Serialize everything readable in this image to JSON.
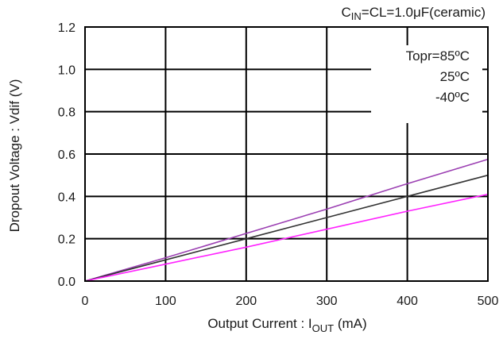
{
  "chart_data": {
    "type": "line",
    "title": "",
    "conditions": {
      "prefix": "C",
      "sub": "IN",
      "rest": "=CL=1.0μF(ceramic)"
    },
    "xlabel": {
      "main": "Output Current : I",
      "sub": "OUT",
      "unit": "(mA)"
    },
    "ylabel": "Dropout Voltage : Vdif (V)",
    "xlim": [
      0,
      500
    ],
    "ylim": [
      0,
      1.2
    ],
    "xticks": [
      "0",
      "100",
      "200",
      "300",
      "400",
      "500"
    ],
    "yticks": [
      "0.0",
      "0.2",
      "0.4",
      "0.6",
      "0.8",
      "1.0",
      "1.2"
    ],
    "grid": true,
    "legend_placement": "top-right",
    "legend_entries": [
      "Topr=85ºC",
      "25ºC",
      "-40ºC"
    ],
    "series": [
      {
        "name": "Topr=85ºC",
        "color": "#9b3fb2",
        "x": [
          0,
          100,
          200,
          300,
          400,
          500
        ],
        "y": [
          0.0,
          0.11,
          0.225,
          0.34,
          0.46,
          0.575
        ]
      },
      {
        "name": "25ºC",
        "color": "#333333",
        "x": [
          0,
          100,
          200,
          300,
          400,
          500
        ],
        "y": [
          0.0,
          0.1,
          0.2,
          0.3,
          0.4,
          0.5
        ]
      },
      {
        "name": "-40ºC",
        "color": "#ff22ff",
        "x": [
          0,
          100,
          200,
          300,
          400,
          500
        ],
        "y": [
          0.0,
          0.08,
          0.16,
          0.245,
          0.33,
          0.41
        ]
      }
    ]
  }
}
